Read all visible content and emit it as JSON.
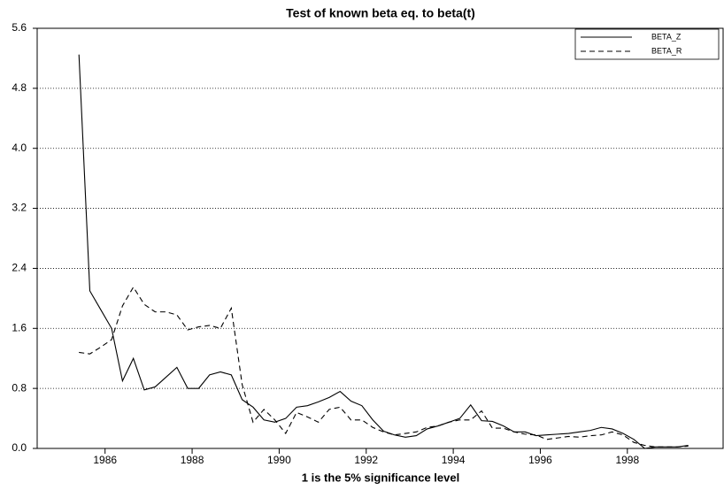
{
  "chart_data": {
    "type": "line",
    "title": "Test of known beta eq. to beta(t)",
    "x_label": "1 is the 5% significance level",
    "x": [
      1985.4,
      1985.65,
      1985.9,
      1986.15,
      1986.4,
      1986.65,
      1986.9,
      1987.15,
      1987.4,
      1987.65,
      1987.9,
      1988.15,
      1988.4,
      1988.65,
      1988.9,
      1989.15,
      1989.4,
      1989.65,
      1989.9,
      1990.15,
      1990.4,
      1990.65,
      1990.9,
      1991.15,
      1991.4,
      1991.65,
      1991.9,
      1992.15,
      1992.4,
      1992.65,
      1992.9,
      1993.15,
      1993.4,
      1993.65,
      1993.9,
      1994.15,
      1994.4,
      1994.65,
      1994.9,
      1995.15,
      1995.4,
      1995.65,
      1995.9,
      1996.15,
      1996.4,
      1996.65,
      1996.9,
      1997.15,
      1997.4,
      1997.65,
      1997.9,
      1998.15,
      1998.4,
      1998.65,
      1998.9,
      1999.15,
      1999.4
    ],
    "series": [
      {
        "name": "BETA_Z",
        "color": "#000000",
        "dash": "solid",
        "values": [
          5.25,
          2.1,
          1.85,
          1.6,
          0.9,
          1.2,
          0.78,
          0.82,
          0.95,
          1.08,
          0.8,
          0.8,
          0.98,
          1.02,
          0.98,
          0.65,
          0.55,
          0.38,
          0.35,
          0.4,
          0.55,
          0.57,
          0.62,
          0.68,
          0.76,
          0.63,
          0.57,
          0.38,
          0.23,
          0.18,
          0.15,
          0.17,
          0.26,
          0.3,
          0.35,
          0.4,
          0.58,
          0.37,
          0.36,
          0.3,
          0.22,
          0.22,
          0.17,
          0.18,
          0.19,
          0.2,
          0.22,
          0.24,
          0.28,
          0.26,
          0.2,
          0.12,
          0.0,
          0.02,
          0.02,
          0.02,
          0.04
        ]
      },
      {
        "name": "BETA_R",
        "color": "#000000",
        "dash": "dashed",
        "values": [
          1.28,
          1.26,
          1.35,
          1.45,
          1.9,
          2.15,
          1.92,
          1.82,
          1.82,
          1.78,
          1.58,
          1.62,
          1.64,
          1.6,
          1.87,
          0.85,
          0.35,
          0.52,
          0.38,
          0.2,
          0.48,
          0.42,
          0.35,
          0.52,
          0.55,
          0.38,
          0.38,
          0.28,
          0.22,
          0.18,
          0.2,
          0.22,
          0.28,
          0.3,
          0.35,
          0.38,
          0.38,
          0.5,
          0.27,
          0.27,
          0.22,
          0.19,
          0.18,
          0.12,
          0.14,
          0.16,
          0.15,
          0.17,
          0.18,
          0.22,
          0.18,
          0.08,
          0.04,
          0.02,
          0.02,
          0.02,
          0.03
        ]
      }
    ],
    "xlim": [
      1984.44,
      2000.2
    ],
    "xticks": [
      1986,
      1988,
      1990,
      1992,
      1994,
      1996,
      1998
    ],
    "ylim": [
      0,
      5.6
    ],
    "yticks": [
      {
        "value": 0,
        "label": "0.0"
      },
      {
        "value": 0.8,
        "label": "0.8"
      },
      {
        "value": 1.6,
        "label": "1.6"
      },
      {
        "value": 2.4,
        "label": "2.4"
      },
      {
        "value": 3.2,
        "label": "3.2"
      },
      {
        "value": 4,
        "label": "4.0"
      },
      {
        "value": 4.8,
        "label": "4.8"
      },
      {
        "value": 5.6,
        "label": "5.6"
      }
    ],
    "grid": true,
    "legend": "upper right"
  }
}
